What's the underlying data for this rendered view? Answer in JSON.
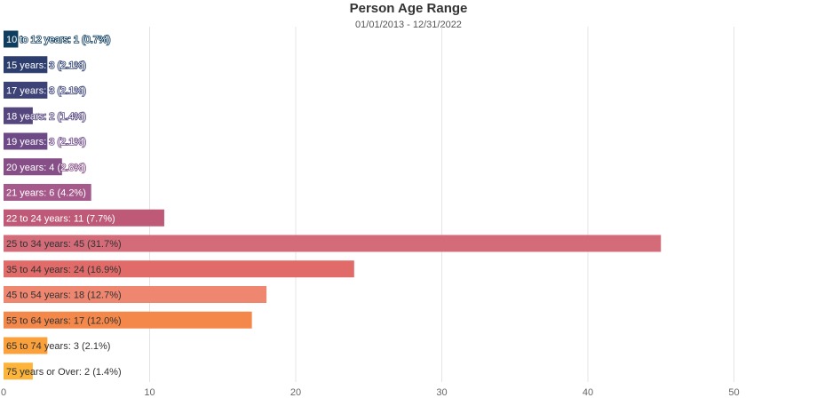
{
  "chart_data": {
    "type": "bar",
    "orientation": "horizontal",
    "title": "Person Age Range",
    "subtitle": "01/01/2013 - 12/31/2022",
    "xlabel": "",
    "ylabel": "",
    "xlim": [
      0,
      55
    ],
    "x_ticks": [
      0,
      10,
      20,
      30,
      40,
      50
    ],
    "grid": true,
    "legend": "none",
    "categories": [
      "10 to 12 years",
      "15 years",
      "17 years",
      "18 years",
      "19 years",
      "20 years",
      "21 years",
      "22 to 24 years",
      "25 to 34 years",
      "35 to 44 years",
      "45 to 54 years",
      "55 to 64 years",
      "65 to 74 years",
      "75 years or Over"
    ],
    "values": [
      1,
      3,
      3,
      2,
      3,
      4,
      6,
      11,
      45,
      24,
      18,
      17,
      3,
      2
    ],
    "data_labels": [
      "10 to 12 years: 1 (0.7%)",
      "15 years: 3 (2.1%)",
      "17 years: 3 (2.1%)",
      "18 years: 2 (1.4%)",
      "19 years: 3 (2.1%)",
      "20 years: 4 (2.8%)",
      "21 years: 6 (4.2%)",
      "22 to 24 years: 11 (7.7%)",
      "25 to 34 years: 45 (31.7%)",
      "35 to 44 years: 24 (16.9%)",
      "45 to 54 years: 18 (12.7%)",
      "55 to 64 years: 17 (12.0%)",
      "65 to 74 years: 3 (2.1%)",
      "75 years or Over: 2 (1.4%)"
    ],
    "colors": [
      "#0f3d5e",
      "#2d3e6e",
      "#3d4377",
      "#55467e",
      "#6d4a86",
      "#864f87",
      "#a65a8b",
      "#be5a78",
      "#d46b78",
      "#e06b68",
      "#ee8670",
      "#f4884a",
      "#faa13c",
      "#fcb53a"
    ],
    "label_colors": [
      "#ffffff",
      "#ffffff",
      "#ffffff",
      "#ffffff",
      "#ffffff",
      "#ffffff",
      "#ffffff",
      "#ffffff",
      "#333333",
      "#333333",
      "#333333",
      "#333333",
      "#333333",
      "#333333"
    ]
  }
}
